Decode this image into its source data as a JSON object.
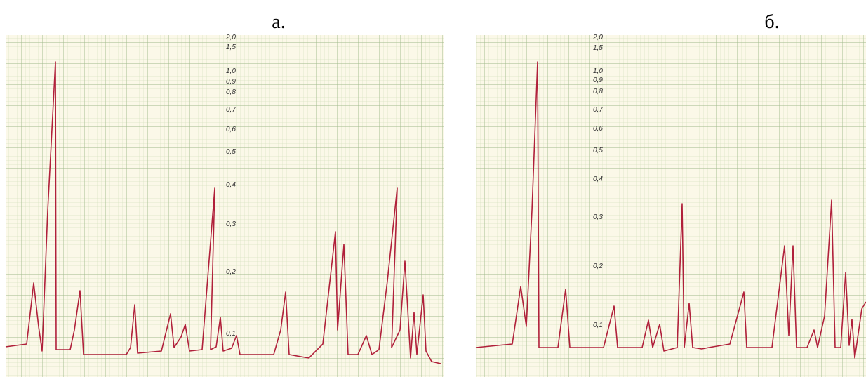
{
  "panels": [
    {
      "label": "а.",
      "scale_labels": [
        "2,0",
        "1,5",
        "1,0",
        "0,9",
        "0,8",
        "0,7",
        "0,6",
        "0,5",
        "0,4",
        "0,3",
        "0,2",
        "0,1"
      ]
    },
    {
      "label": "б.",
      "scale_labels": [
        "2,0",
        "1,5",
        "1,0",
        "0,9",
        "0,8",
        "0,7",
        "0,6",
        "0,5",
        "0,4",
        "0,3",
        "0,2",
        "0,1"
      ]
    }
  ]
}
